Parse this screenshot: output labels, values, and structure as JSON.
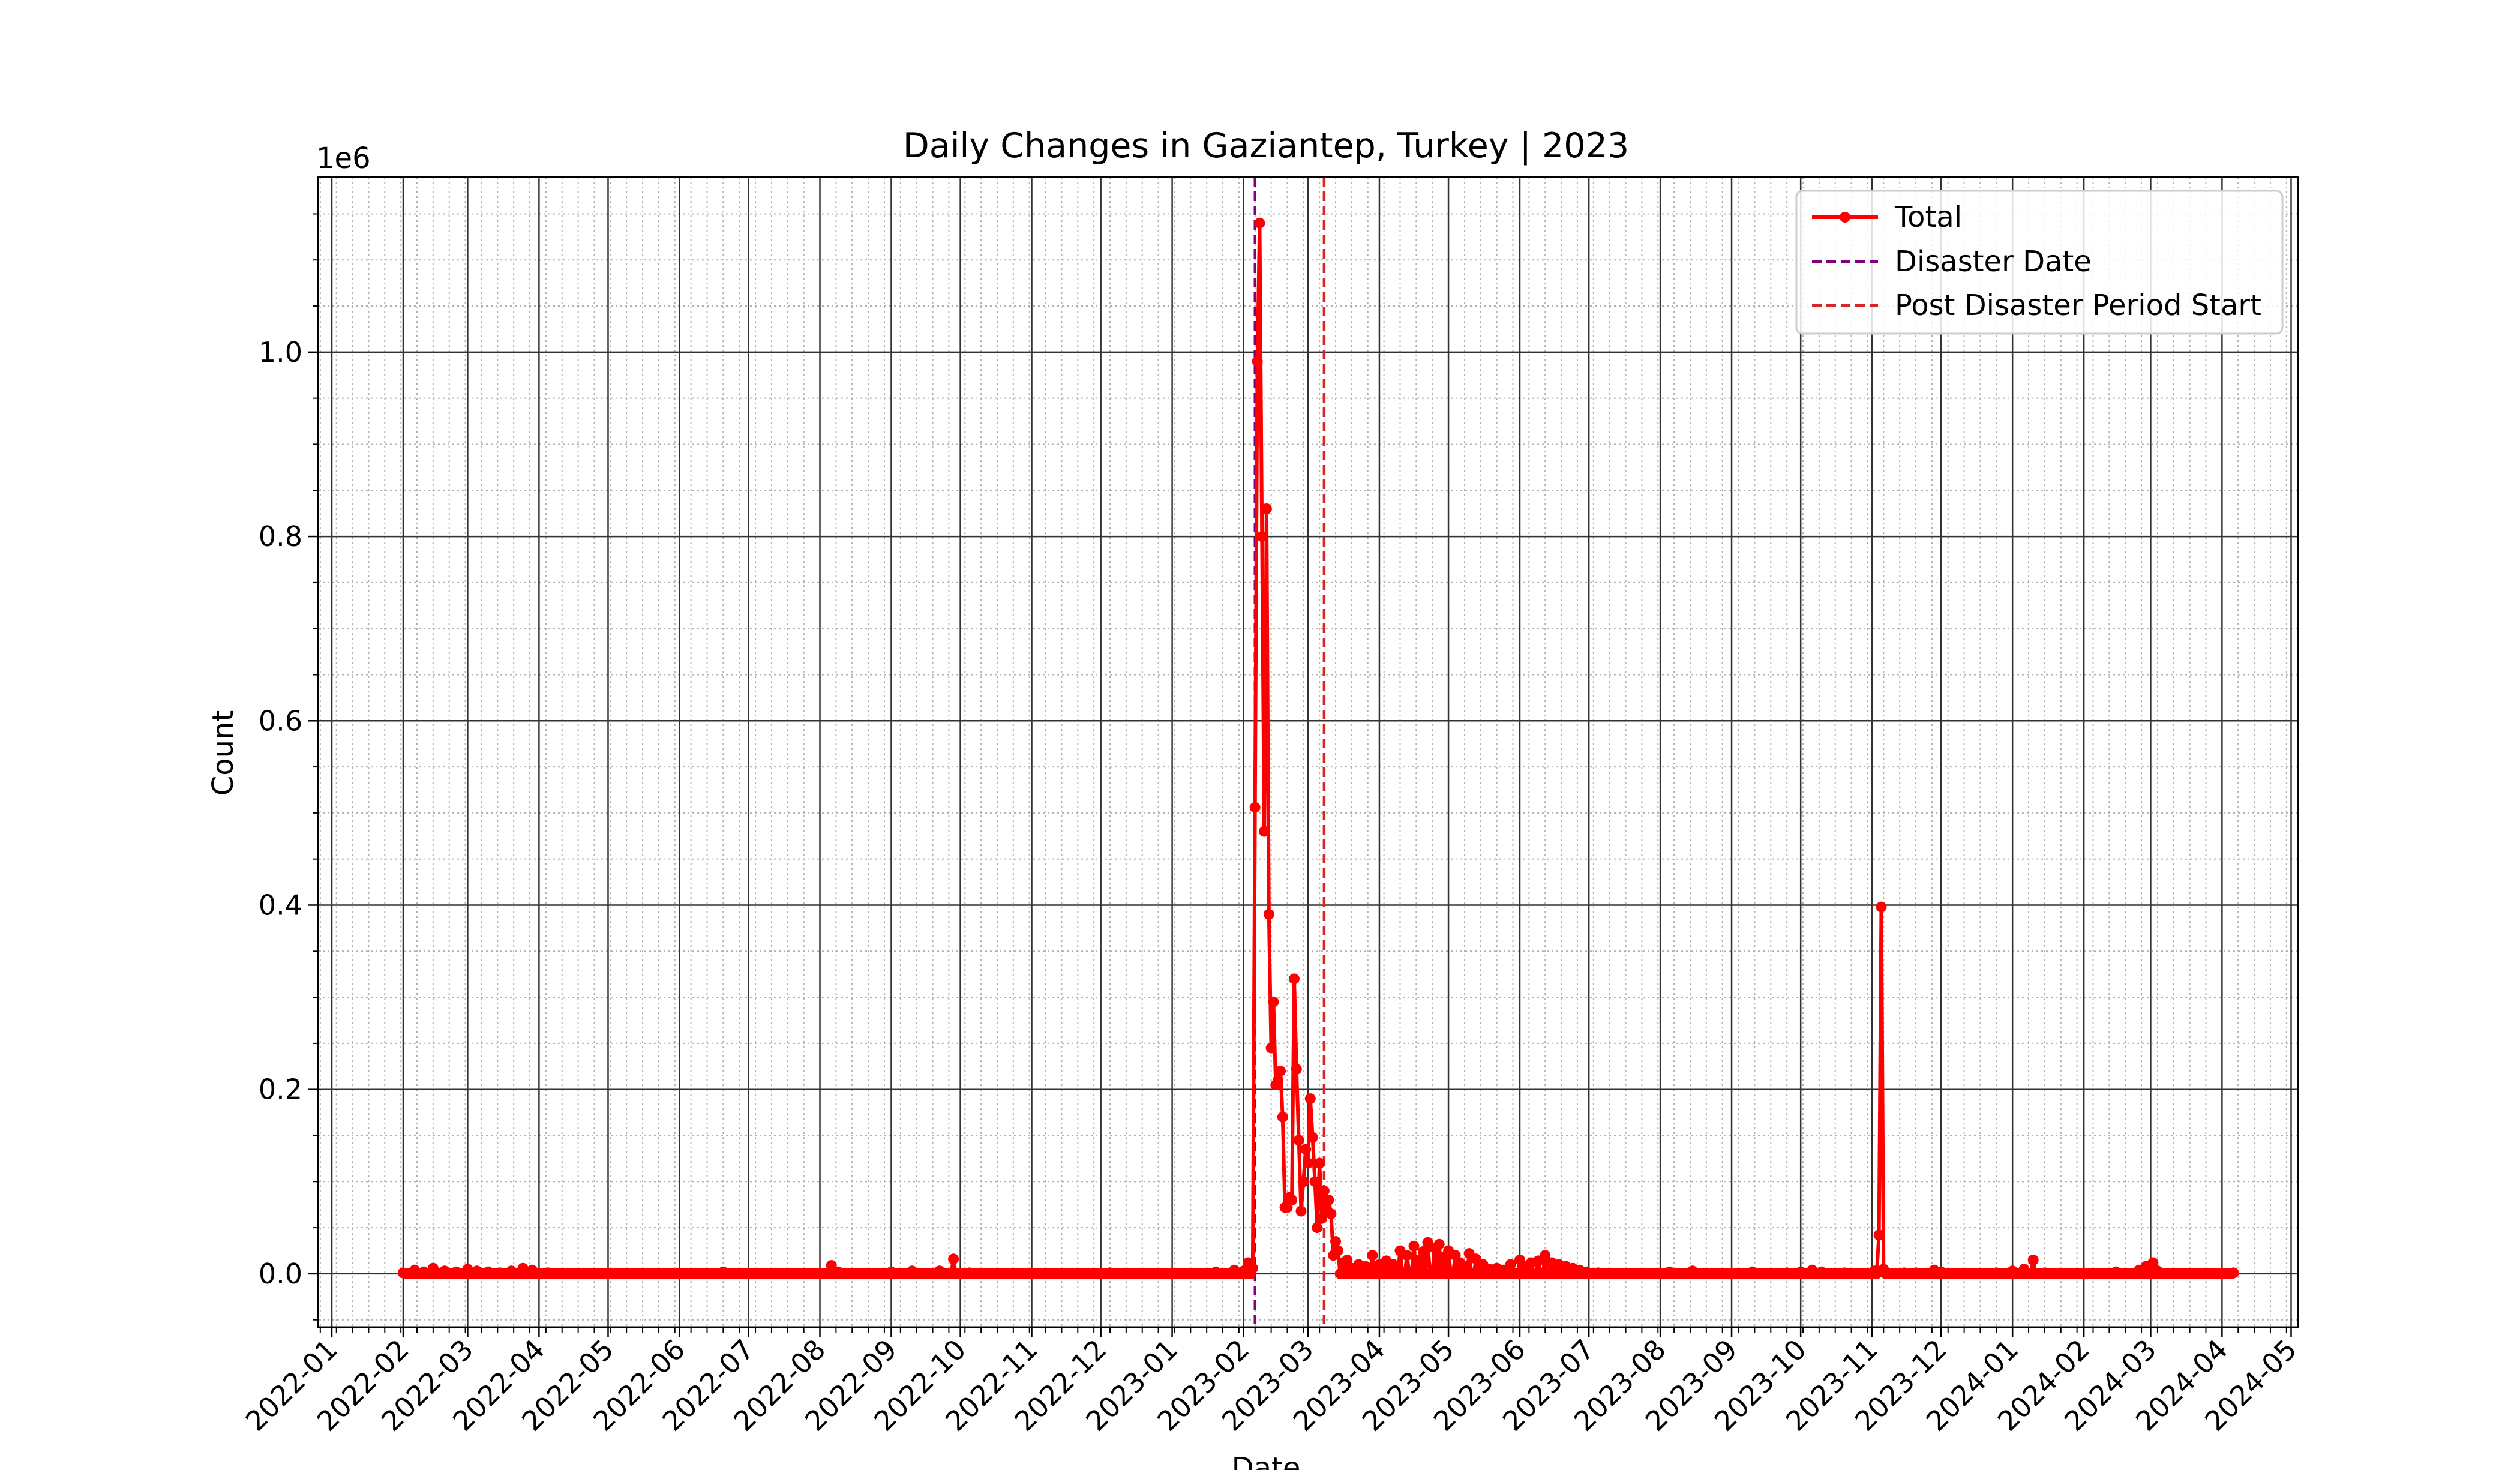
{
  "chart_data": {
    "type": "line",
    "title": "Daily Changes in Gaziantep, Turkey | 2023",
    "xlabel": "Date",
    "ylabel": "Count",
    "y_offset_label": "1e6",
    "xlim": [
      "2021-12-26",
      "2024-05-04"
    ],
    "ylim": [
      -0.058,
      1.19
    ],
    "y_scale_multiplier": 1000000,
    "x_tick_labels": [
      "2022-01",
      "2022-02",
      "2022-03",
      "2022-04",
      "2022-05",
      "2022-06",
      "2022-07",
      "2022-08",
      "2022-09",
      "2022-10",
      "2022-11",
      "2022-12",
      "2023-01",
      "2023-02",
      "2023-03",
      "2023-04",
      "2023-05",
      "2023-06",
      "2023-07",
      "2023-08",
      "2023-09",
      "2023-10",
      "2023-11",
      "2023-12",
      "2024-01",
      "2024-02",
      "2024-03",
      "2024-04",
      "2024-05"
    ],
    "y_tick_labels": [
      "0.0",
      "0.2",
      "0.4",
      "0.6",
      "0.8",
      "1.0"
    ],
    "grid": "major and minor",
    "legend_position": "upper right",
    "legend": [
      "Total",
      "Disaster Date",
      "Post Disaster Period Start"
    ],
    "colors": {
      "total": "#ff0000",
      "disaster": "#800080",
      "post": "#d62728"
    },
    "vlines": [
      {
        "name": "Disaster Date",
        "x": "2023-02-06",
        "style": "dashed",
        "color": "#800080"
      },
      {
        "name": "Post Disaster Period Start",
        "x": "2023-03-08",
        "style": "dashed",
        "color": "#d62728"
      }
    ],
    "series": [
      {
        "name": "Total",
        "color": "#ff0000",
        "marker": "circle",
        "baseline_range": [
          "2022-02-01",
          "2024-04-06"
        ],
        "points": [
          [
            "2022-02-01",
            0.001
          ],
          [
            "2022-02-06",
            0.004
          ],
          [
            "2022-02-10",
            0.002
          ],
          [
            "2022-02-14",
            0.006
          ],
          [
            "2022-02-19",
            0.003
          ],
          [
            "2022-02-24",
            0.002
          ],
          [
            "2022-03-01",
            0.005
          ],
          [
            "2022-03-05",
            0.003
          ],
          [
            "2022-03-10",
            0.002
          ],
          [
            "2022-03-15",
            0.001
          ],
          [
            "2022-03-20",
            0.003
          ],
          [
            "2022-03-25",
            0.006
          ],
          [
            "2022-03-29",
            0.004
          ],
          [
            "2022-04-05",
            0.001
          ],
          [
            "2022-06-20",
            0.002
          ],
          [
            "2022-08-06",
            0.009
          ],
          [
            "2022-08-09",
            0.002
          ],
          [
            "2022-09-01",
            0.002
          ],
          [
            "2022-09-10",
            0.003
          ],
          [
            "2022-09-22",
            0.003
          ],
          [
            "2022-09-28",
            0.016
          ],
          [
            "2022-10-05",
            0.001
          ],
          [
            "2022-12-05",
            0.001
          ],
          [
            "2023-01-20",
            0.002
          ],
          [
            "2023-01-28",
            0.004
          ],
          [
            "2023-02-01",
            0.003
          ],
          [
            "2023-02-03",
            0.012
          ],
          [
            "2023-02-05",
            0.006
          ],
          [
            "2023-02-06",
            0.506
          ],
          [
            "2023-02-07",
            0.99
          ],
          [
            "2023-02-08",
            1.14
          ],
          [
            "2023-02-09",
            0.8
          ],
          [
            "2023-02-10",
            0.48
          ],
          [
            "2023-02-11",
            0.83
          ],
          [
            "2023-02-12",
            0.39
          ],
          [
            "2023-02-13",
            0.245
          ],
          [
            "2023-02-14",
            0.295
          ],
          [
            "2023-02-15",
            0.205
          ],
          [
            "2023-02-16",
            0.21
          ],
          [
            "2023-02-17",
            0.22
          ],
          [
            "2023-02-18",
            0.17
          ],
          [
            "2023-02-19",
            0.072
          ],
          [
            "2023-02-20",
            0.072
          ],
          [
            "2023-02-21",
            0.083
          ],
          [
            "2023-02-22",
            0.08
          ],
          [
            "2023-02-23",
            0.32
          ],
          [
            "2023-02-24",
            0.222
          ],
          [
            "2023-02-25",
            0.145
          ],
          [
            "2023-02-26",
            0.068
          ],
          [
            "2023-02-27",
            0.1
          ],
          [
            "2023-02-28",
            0.135
          ],
          [
            "2023-03-01",
            0.12
          ],
          [
            "2023-03-02",
            0.19
          ],
          [
            "2023-03-03",
            0.148
          ],
          [
            "2023-03-04",
            0.1
          ],
          [
            "2023-03-05",
            0.05
          ],
          [
            "2023-03-06",
            0.12
          ],
          [
            "2023-03-07",
            0.06
          ],
          [
            "2023-03-08",
            0.09
          ],
          [
            "2023-03-09",
            0.07
          ],
          [
            "2023-03-10",
            0.08
          ],
          [
            "2023-03-11",
            0.065
          ],
          [
            "2023-03-12",
            0.02
          ],
          [
            "2023-03-13",
            0.035
          ],
          [
            "2023-03-14",
            0.025
          ],
          [
            "2023-03-16",
            0.012
          ],
          [
            "2023-03-18",
            0.015
          ],
          [
            "2023-03-20",
            0.006
          ],
          [
            "2023-03-23",
            0.01
          ],
          [
            "2023-03-26",
            0.008
          ],
          [
            "2023-03-29",
            0.02
          ],
          [
            "2023-04-01",
            0.01
          ],
          [
            "2023-04-04",
            0.014
          ],
          [
            "2023-04-07",
            0.01
          ],
          [
            "2023-04-10",
            0.025
          ],
          [
            "2023-04-13",
            0.02
          ],
          [
            "2023-04-16",
            0.03
          ],
          [
            "2023-04-18",
            0.015
          ],
          [
            "2023-04-20",
            0.024
          ],
          [
            "2023-04-22",
            0.034
          ],
          [
            "2023-04-25",
            0.028
          ],
          [
            "2023-04-27",
            0.032
          ],
          [
            "2023-04-29",
            0.018
          ],
          [
            "2023-05-01",
            0.025
          ],
          [
            "2023-05-04",
            0.02
          ],
          [
            "2023-05-06",
            0.012
          ],
          [
            "2023-05-08",
            0.008
          ],
          [
            "2023-05-10",
            0.022
          ],
          [
            "2023-05-13",
            0.016
          ],
          [
            "2023-05-16",
            0.01
          ],
          [
            "2023-05-19",
            0.005
          ],
          [
            "2023-05-22",
            0.006
          ],
          [
            "2023-05-25",
            0.004
          ],
          [
            "2023-05-28",
            0.01
          ],
          [
            "2023-06-01",
            0.015
          ],
          [
            "2023-06-03",
            0.008
          ],
          [
            "2023-06-06",
            0.012
          ],
          [
            "2023-06-09",
            0.014
          ],
          [
            "2023-06-12",
            0.02
          ],
          [
            "2023-06-15",
            0.012
          ],
          [
            "2023-06-18",
            0.01
          ],
          [
            "2023-06-21",
            0.008
          ],
          [
            "2023-06-24",
            0.006
          ],
          [
            "2023-06-27",
            0.004
          ],
          [
            "2023-06-30",
            0.002
          ],
          [
            "2023-07-05",
            0.001
          ],
          [
            "2023-08-05",
            0.002
          ],
          [
            "2023-08-15",
            0.003
          ],
          [
            "2023-09-10",
            0.002
          ],
          [
            "2023-09-25",
            0.001
          ],
          [
            "2023-10-01",
            0.002
          ],
          [
            "2023-10-06",
            0.004
          ],
          [
            "2023-10-10",
            0.002
          ],
          [
            "2023-10-20",
            0.001
          ],
          [
            "2023-11-02",
            0.003
          ],
          [
            "2023-11-04",
            0.042
          ],
          [
            "2023-11-05",
            0.398
          ],
          [
            "2023-11-06",
            0.005
          ],
          [
            "2023-11-15",
            0.001
          ],
          [
            "2023-11-20",
            0.001
          ],
          [
            "2023-11-28",
            0.004
          ],
          [
            "2023-12-01",
            0.002
          ],
          [
            "2023-12-25",
            0.001
          ],
          [
            "2024-01-01",
            0.003
          ],
          [
            "2024-01-06",
            0.005
          ],
          [
            "2024-01-10",
            0.015
          ],
          [
            "2024-01-15",
            0.001
          ],
          [
            "2024-02-15",
            0.002
          ],
          [
            "2024-02-25",
            0.004
          ],
          [
            "2024-02-28",
            0.008
          ],
          [
            "2024-03-02",
            0.012
          ],
          [
            "2024-03-04",
            0.003
          ],
          [
            "2024-04-06",
            0.001
          ]
        ]
      }
    ]
  }
}
